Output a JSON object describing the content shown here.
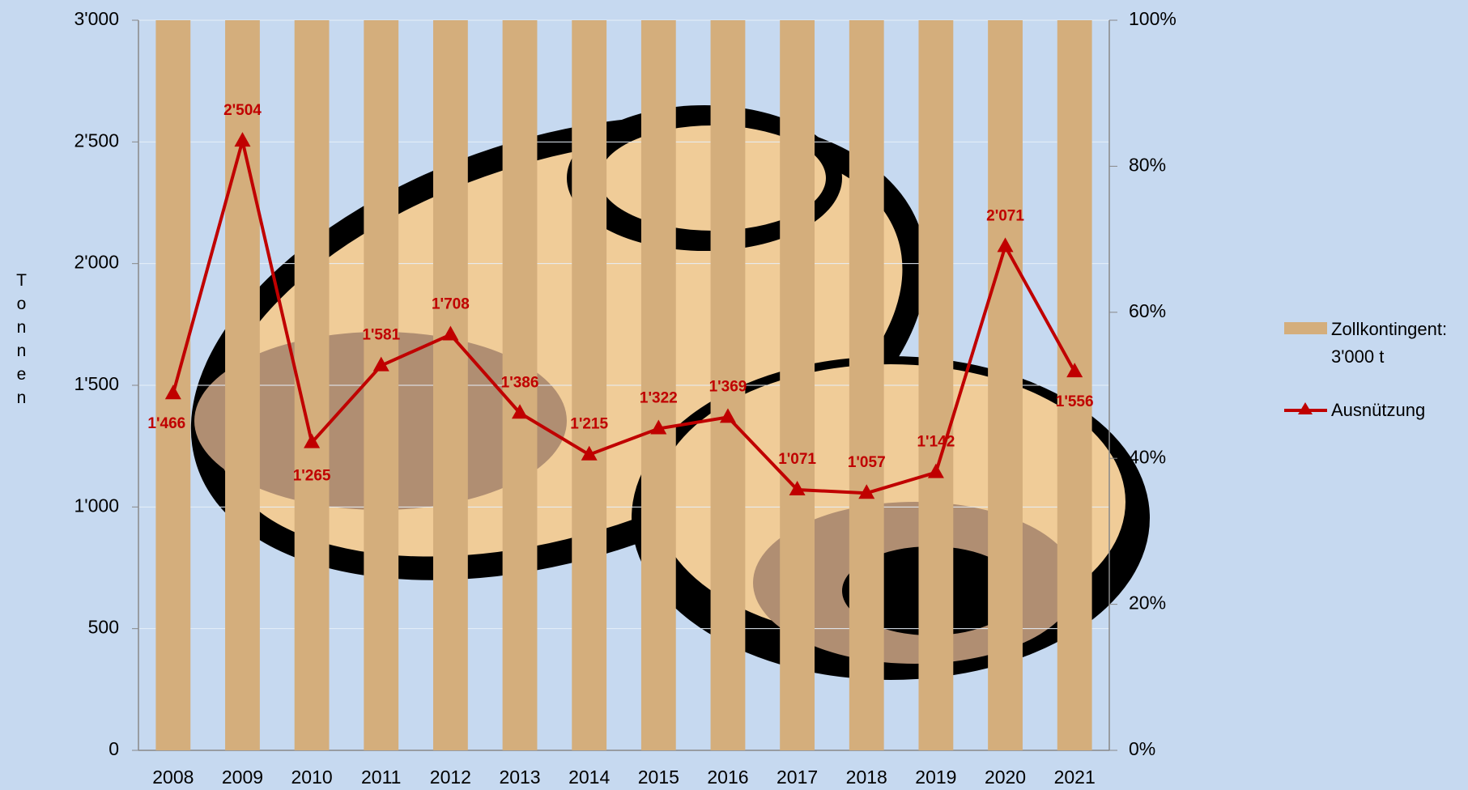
{
  "chart_data": {
    "type": "bar_line",
    "y_axis_label": "Tonnen",
    "categories": [
      "2008",
      "2009",
      "2010",
      "2011",
      "2012",
      "2013",
      "2014",
      "2015",
      "2016",
      "2017",
      "2018",
      "2019",
      "2020",
      "2021"
    ],
    "series": [
      {
        "name": "Zollkontingent: 3'000 t",
        "type": "bar",
        "color": "#d4ae7c",
        "values": [
          3000,
          3000,
          3000,
          3000,
          3000,
          3000,
          3000,
          3000,
          3000,
          3000,
          3000,
          3000,
          3000,
          3000
        ]
      },
      {
        "name": "Ausnützung",
        "type": "line",
        "color": "#c00000",
        "values": [
          1466,
          2504,
          1265,
          1581,
          1708,
          1386,
          1215,
          1322,
          1369,
          1071,
          1057,
          1142,
          2071,
          1556
        ],
        "value_labels": [
          "1'466",
          "2'504",
          "1'265",
          "1'581",
          "1'708",
          "1'386",
          "1'215",
          "1'322",
          "1'369",
          "1'071",
          "1'057",
          "1'142",
          "2'071",
          "1'556"
        ]
      }
    ],
    "ylim": [
      0,
      3000
    ],
    "yticks": [
      0,
      500,
      {
        "value": 1000,
        "label": "1'000"
      },
      {
        "value": 1500,
        "label": "1'500"
      },
      {
        "value": 2000,
        "label": "2'000"
      },
      {
        "value": 2500,
        "label": "2'500"
      },
      {
        "value": 3000,
        "label": "3'000"
      }
    ],
    "y2lim": [
      0,
      100
    ],
    "y2ticks": [
      {
        "value": 0,
        "label": "0%"
      },
      {
        "value": 20,
        "label": "20%"
      },
      {
        "value": 40,
        "label": "40%"
      },
      {
        "value": 60,
        "label": "60%"
      },
      {
        "value": 80,
        "label": "80%"
      },
      {
        "value": 100,
        "label": "100%"
      }
    ],
    "grid": true
  }
}
